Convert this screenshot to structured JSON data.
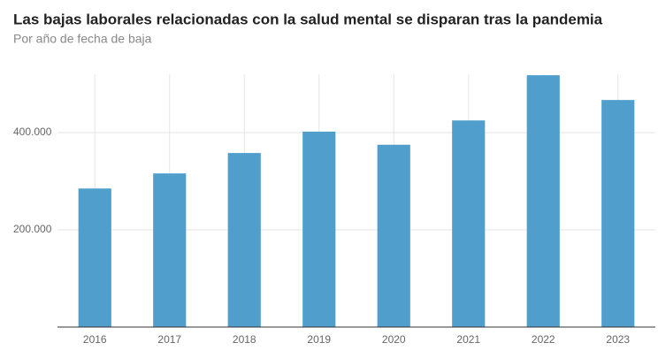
{
  "chart_data": {
    "type": "bar",
    "title": "Las bajas laborales relacionadas con la salud mental se disparan tras la pandemia",
    "subtitle": "Por año de fecha de baja",
    "categories": [
      "2016",
      "2017",
      "2018",
      "2019",
      "2020",
      "2021",
      "2022",
      "2023"
    ],
    "values": [
      285000,
      316000,
      358000,
      402000,
      375000,
      425000,
      518000,
      467000
    ],
    "color": "#4f9ecb",
    "ylim": [
      0,
      520000
    ],
    "yticks": [
      {
        "value": 200000,
        "label": "200.000"
      },
      {
        "value": 400000,
        "label": "400.000"
      }
    ],
    "grid": true
  }
}
